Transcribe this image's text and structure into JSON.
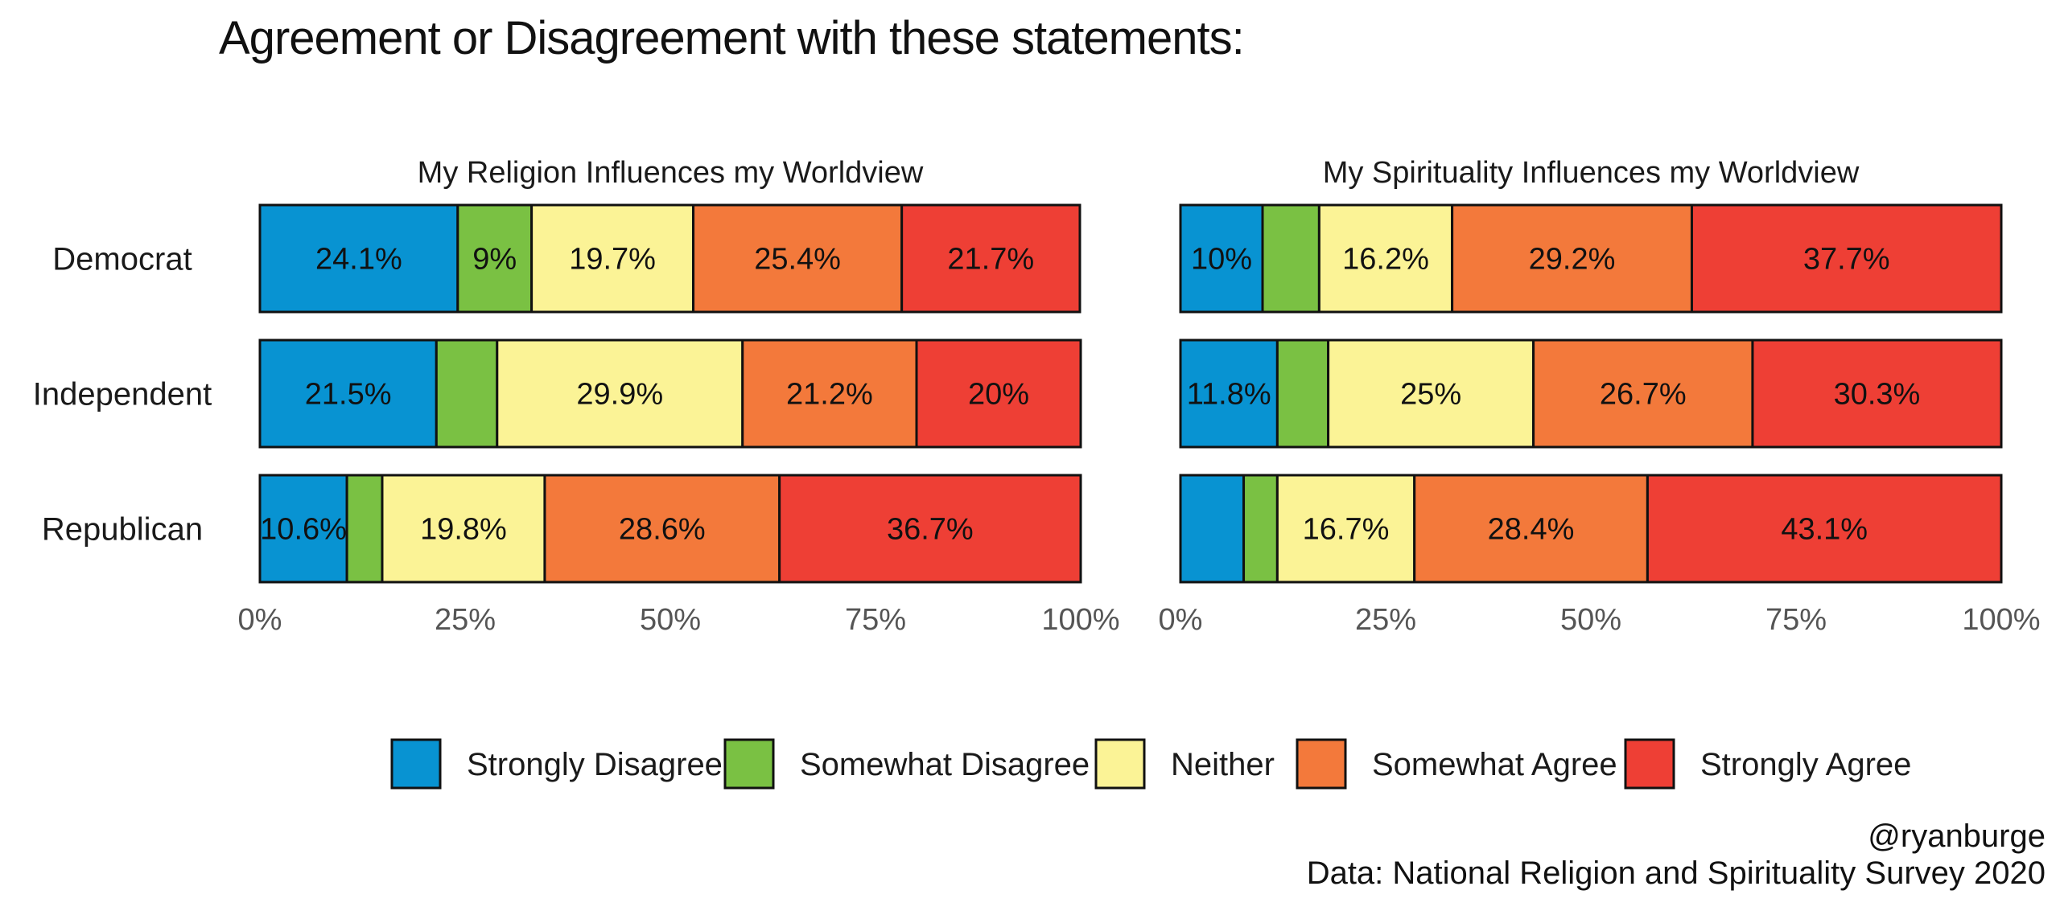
{
  "header": {
    "title": "Agreement or Disagreement with these statements:"
  },
  "footer": {
    "handle": "@ryanburge",
    "source": "Data: National Religion and Spirituality Survey 2020"
  },
  "colors": {
    "Strongly Disagree": "#0893D2",
    "Somewhat Disagree": "#7AC143",
    "Neither": "#FBF396",
    "Somewhat Agree": "#F3793B",
    "Strongly Agree": "#EE3F35"
  },
  "chart_data": {
    "type": "bar",
    "orientation": "horizontal",
    "stacked": true,
    "title": "Agreement or Disagreement with these statements:",
    "categories": [
      "Democrat",
      "Independent",
      "Republican"
    ],
    "series_names": [
      "Strongly Disagree",
      "Somewhat Disagree",
      "Neither",
      "Somewhat Agree",
      "Strongly Agree"
    ],
    "xlim": [
      0,
      100
    ],
    "xticks": [
      "0%",
      "25%",
      "50%",
      "75%",
      "100%"
    ],
    "legend": "bottom",
    "grid": false,
    "facets": [
      {
        "title": "My Religion Influences my Worldview",
        "rows": [
          {
            "category": "Democrat",
            "values": [
              24.1,
              9.0,
              19.7,
              25.4,
              21.7
            ],
            "labels": [
              "24.1%",
              "9%",
              "19.7%",
              "25.4%",
              "21.7%"
            ]
          },
          {
            "category": "Independent",
            "values": [
              21.5,
              7.4,
              29.9,
              21.2,
              20.0
            ],
            "labels": [
              "21.5%",
              "",
              "29.9%",
              "21.2%",
              "20%"
            ]
          },
          {
            "category": "Republican",
            "values": [
              10.6,
              4.3,
              19.8,
              28.6,
              36.7
            ],
            "labels": [
              "10.6%",
              "",
              "19.8%",
              "28.6%",
              "36.7%"
            ]
          }
        ]
      },
      {
        "title": "My Spirituality Influences my Worldview",
        "rows": [
          {
            "category": "Democrat",
            "values": [
              10.0,
              6.9,
              16.2,
              29.2,
              37.7
            ],
            "labels": [
              "10%",
              "",
              "16.2%",
              "29.2%",
              "37.7%"
            ]
          },
          {
            "category": "Independent",
            "values": [
              11.8,
              6.2,
              25.0,
              26.7,
              30.3
            ],
            "labels": [
              "11.8%",
              "",
              "25%",
              "26.7%",
              "30.3%"
            ]
          },
          {
            "category": "Republican",
            "values": [
              7.7,
              4.1,
              16.7,
              28.4,
              43.1
            ],
            "labels": [
              "",
              "",
              "16.7%",
              "28.4%",
              "43.1%"
            ]
          }
        ]
      }
    ]
  }
}
